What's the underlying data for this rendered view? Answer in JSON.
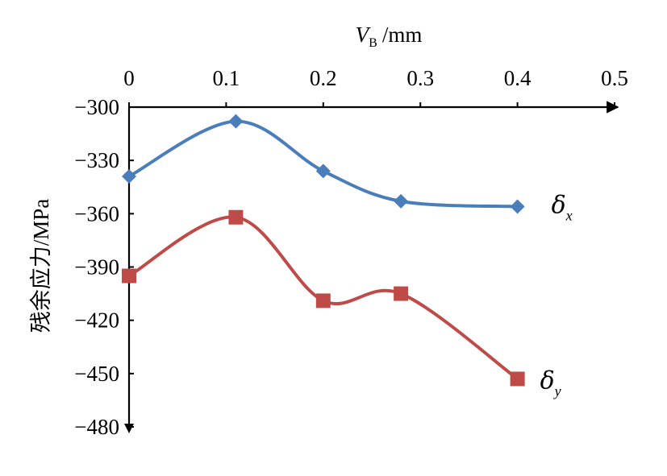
{
  "chart_data": {
    "type": "line",
    "x_axis": {
      "label_var": "V",
      "label_sub": "B",
      "label_unit": "/mm",
      "range": [
        0,
        0.5
      ],
      "ticks": [
        "0",
        "0.1",
        "0.2",
        "0.3",
        "0.4",
        "0.5"
      ],
      "position": "top"
    },
    "y_axis": {
      "label": "残余应力/MPa",
      "range": [
        -300,
        -480
      ],
      "ticks": [
        "−300",
        "−330",
        "−360",
        "−390",
        "−420",
        "−450",
        "−480"
      ],
      "direction": "downward"
    },
    "grid": false,
    "series": [
      {
        "name": "δ",
        "name_sub": "x",
        "color": "#4a7ebb",
        "marker": "diamond",
        "x": [
          0,
          0.11,
          0.2,
          0.28,
          0.4
        ],
        "y": [
          -339,
          -308,
          -336,
          -353,
          -356
        ]
      },
      {
        "name": "δ",
        "name_sub": "y",
        "color": "#be4b48",
        "marker": "square",
        "x": [
          0,
          0.11,
          0.2,
          0.28,
          0.4
        ],
        "y": [
          -395,
          -362,
          -409,
          -405,
          -453
        ]
      }
    ]
  }
}
